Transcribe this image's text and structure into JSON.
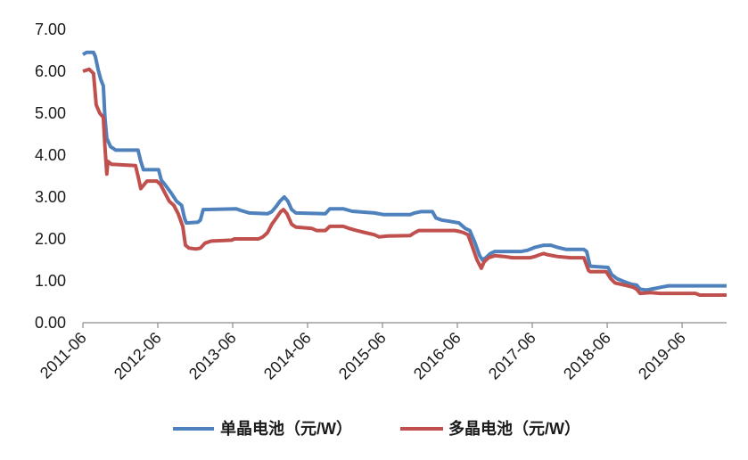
{
  "chart_data": {
    "type": "line",
    "xlim": [
      "2011-06-01",
      "2020-01-05"
    ],
    "ylim": [
      0,
      7
    ],
    "grid": false,
    "legend_position": "bottom",
    "x_ticks": [
      "2011-06",
      "2012-06",
      "2013-06",
      "2014-06",
      "2015-06",
      "2016-06",
      "2017-06",
      "2018-06",
      "2019-06"
    ],
    "y_ticks": [
      "0.00",
      "1.00",
      "2.00",
      "3.00",
      "4.00",
      "5.00",
      "6.00",
      "7.00"
    ],
    "series": [
      {
        "name": "单晶电池（元/W）",
        "color": "#4f81bd",
        "x": [
          "2011-06-01",
          "2011-06-18",
          "2011-07-22",
          "2011-08-01",
          "2011-08-14",
          "2011-08-27",
          "2011-09-09",
          "2011-09-17",
          "2011-09-26",
          "2011-10-14",
          "2011-11-09",
          "2012-02-26",
          "2012-03-09",
          "2012-03-22",
          "2012-06-05",
          "2012-06-18",
          "2012-07-05",
          "2012-08-05",
          "2012-09-01",
          "2012-09-26",
          "2012-10-09",
          "2012-10-18",
          "2012-12-14",
          "2012-12-26",
          "2013-01-09",
          "2013-06-18",
          "2013-07-09",
          "2013-08-22",
          "2013-11-18",
          "2013-12-09",
          "2014-01-01",
          "2014-01-18",
          "2014-02-09",
          "2014-02-26",
          "2014-03-14",
          "2014-04-05",
          "2014-08-26",
          "2014-09-18",
          "2014-11-22",
          "2015-01-05",
          "2015-04-22",
          "2015-06-05",
          "2015-10-14",
          "2015-11-05",
          "2015-12-05",
          "2016-02-01",
          "2016-02-18",
          "2016-03-14",
          "2016-04-26",
          "2016-06-09",
          "2016-07-09",
          "2016-08-01",
          "2016-08-26",
          "2016-09-18",
          "2016-10-01",
          "2016-10-18",
          "2016-11-09",
          "2016-12-01",
          "2017-04-09",
          "2017-05-09",
          "2017-06-14",
          "2017-07-26",
          "2017-09-01",
          "2017-10-01",
          "2017-11-14",
          "2018-02-09",
          "2018-02-22",
          "2018-03-09",
          "2018-06-05",
          "2018-06-22",
          "2018-07-18",
          "2018-08-22",
          "2018-09-26",
          "2018-10-22",
          "2018-11-09",
          "2018-12-09",
          "2019-01-22",
          "2019-02-22",
          "2019-03-26",
          "2020-01-05"
        ],
        "y": [
          6.4,
          6.45,
          6.45,
          6.35,
          6.05,
          5.8,
          5.65,
          4.9,
          4.4,
          4.2,
          4.12,
          4.12,
          3.85,
          3.65,
          3.65,
          3.4,
          3.3,
          3.1,
          2.9,
          2.8,
          2.5,
          2.38,
          2.4,
          2.45,
          2.7,
          2.72,
          2.68,
          2.62,
          2.6,
          2.65,
          2.78,
          2.9,
          3.0,
          2.9,
          2.7,
          2.62,
          2.6,
          2.72,
          2.72,
          2.66,
          2.62,
          2.58,
          2.58,
          2.62,
          2.65,
          2.65,
          2.5,
          2.45,
          2.42,
          2.38,
          2.25,
          2.2,
          1.9,
          1.6,
          1.5,
          1.55,
          1.65,
          1.7,
          1.7,
          1.73,
          1.8,
          1.85,
          1.85,
          1.8,
          1.75,
          1.75,
          1.7,
          1.35,
          1.32,
          1.15,
          1.05,
          0.98,
          0.92,
          0.9,
          0.8,
          0.78,
          0.82,
          0.85,
          0.88,
          0.88
        ]
      },
      {
        "name": "多晶电池（元/W）",
        "color": "#c0504d",
        "x": [
          "2011-06-01",
          "2011-07-01",
          "2011-07-22",
          "2011-08-05",
          "2011-08-22",
          "2011-09-09",
          "2011-09-17",
          "2011-09-26",
          "2011-10-01",
          "2011-10-18",
          "2012-02-14",
          "2012-02-26",
          "2012-03-09",
          "2012-03-26",
          "2012-04-09",
          "2012-05-26",
          "2012-06-14",
          "2012-07-05",
          "2012-07-26",
          "2012-08-18",
          "2012-09-09",
          "2012-10-01",
          "2012-10-14",
          "2012-11-01",
          "2012-12-05",
          "2012-12-26",
          "2013-01-18",
          "2013-02-18",
          "2013-05-26",
          "2013-06-09",
          "2013-10-05",
          "2013-10-26",
          "2013-11-18",
          "2013-12-09",
          "2014-01-01",
          "2014-01-22",
          "2014-02-05",
          "2014-02-22",
          "2014-03-14",
          "2014-04-05",
          "2014-06-22",
          "2014-07-14",
          "2014-08-26",
          "2014-09-18",
          "2014-11-22",
          "2014-12-22",
          "2015-01-26",
          "2015-03-09",
          "2015-04-22",
          "2015-05-14",
          "2015-06-26",
          "2015-10-14",
          "2015-11-05",
          "2015-11-26",
          "2016-05-18",
          "2016-06-09",
          "2016-07-01",
          "2016-07-22",
          "2016-08-14",
          "2016-09-05",
          "2016-09-26",
          "2016-10-09",
          "2016-11-01",
          "2016-12-01",
          "2017-01-14",
          "2017-02-26",
          "2017-05-22",
          "2017-06-14",
          "2017-07-05",
          "2017-07-26",
          "2017-08-18",
          "2017-10-01",
          "2017-12-05",
          "2018-02-09",
          "2018-03-01",
          "2018-03-09",
          "2018-05-26",
          "2018-06-18",
          "2018-07-09",
          "2018-08-22",
          "2018-10-05",
          "2018-10-22",
          "2018-11-09",
          "2019-01-01",
          "2019-02-14",
          "2019-08-05",
          "2019-08-26",
          "2020-01-05"
        ],
        "y": [
          6.0,
          6.05,
          5.95,
          5.2,
          5.0,
          4.9,
          4.2,
          3.55,
          3.85,
          3.78,
          3.75,
          3.5,
          3.2,
          3.3,
          3.38,
          3.38,
          3.3,
          3.1,
          2.9,
          2.8,
          2.6,
          2.3,
          1.85,
          1.78,
          1.76,
          1.78,
          1.9,
          1.95,
          1.97,
          2.0,
          2.0,
          2.05,
          2.15,
          2.35,
          2.5,
          2.65,
          2.7,
          2.6,
          2.35,
          2.28,
          2.25,
          2.2,
          2.2,
          2.3,
          2.3,
          2.25,
          2.2,
          2.15,
          2.1,
          2.05,
          2.07,
          2.08,
          2.15,
          2.2,
          2.2,
          2.18,
          2.15,
          2.1,
          1.8,
          1.5,
          1.3,
          1.45,
          1.55,
          1.6,
          1.58,
          1.55,
          1.55,
          1.58,
          1.62,
          1.65,
          1.62,
          1.58,
          1.55,
          1.55,
          1.25,
          1.22,
          1.22,
          1.05,
          0.95,
          0.9,
          0.85,
          0.8,
          0.7,
          0.72,
          0.7,
          0.7,
          0.66,
          0.66
        ]
      }
    ]
  }
}
